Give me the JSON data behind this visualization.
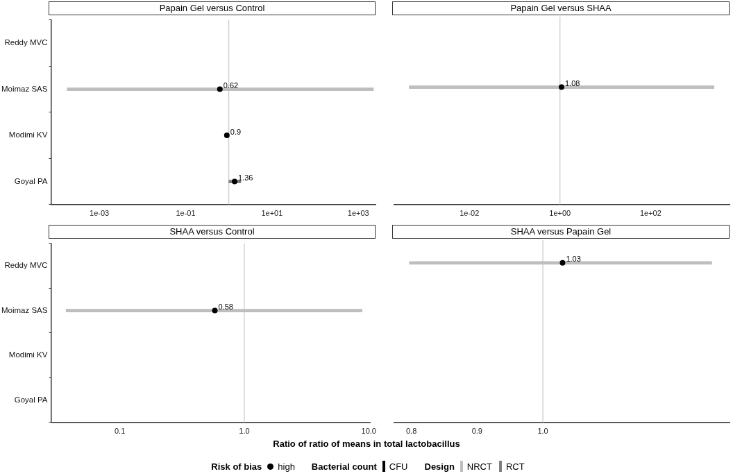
{
  "chart_data": [
    {
      "type": "scatter",
      "title": "Papain Gel versus Control",
      "orientation": "horizontal",
      "categories": [
        "Reddy MVC",
        "Moimaz SAS",
        "Modimi KV",
        "Goyal PA"
      ],
      "log": "x",
      "xlim": [
        7.6e-05,
        2500
      ],
      "xticks": [
        {
          "value": 0.001,
          "label": "1e-03"
        },
        {
          "value": 0.1,
          "label": "1e-01"
        },
        {
          "value": 10,
          "label": "1e+01"
        },
        {
          "value": 1000,
          "label": "1e+03"
        }
      ],
      "ref_lines": [
        {
          "axis": "x",
          "value": 1,
          "color": "#bebebe"
        }
      ],
      "series": [
        {
          "type": "bar",
          "color": "#bebebe",
          "base": [
            null,
            0.00018,
            null,
            null
          ],
          "values": [
            null,
            2240,
            null,
            null
          ]
        },
        {
          "type": "bar",
          "color": "#808080",
          "base": [
            null,
            null,
            null,
            1.0
          ],
          "values": [
            null,
            null,
            null,
            0.9
          ]
        },
        {
          "type": "scatter",
          "color": "#000000",
          "marker": "circle",
          "values": [
            null,
            0.62,
            0.9,
            1.36
          ],
          "value_labels": [
            null,
            "0.62",
            "0.9",
            "1.36"
          ]
        }
      ]
    },
    {
      "type": "scatter",
      "title": "Papain Gel versus SHAA",
      "orientation": "horizontal",
      "categories": [
        null,
        null,
        null,
        null
      ],
      "tick_labels": "x",
      "log": "x",
      "xlim": [
        0.00022,
        5500
      ],
      "xticks": [
        {
          "value": 0.01,
          "label": "1e-02"
        },
        {
          "value": 1,
          "label": "1e+00"
        },
        {
          "value": 100,
          "label": "1e+02"
        }
      ],
      "ref_lines": [
        {
          "axis": "x",
          "value": 1,
          "color": "#bebebe"
        }
      ],
      "series": [
        {
          "type": "bar",
          "color": "#bebebe",
          "base": [
            null,
            0.00047,
            null,
            null
          ],
          "values": [
            null,
            2500,
            null,
            null
          ]
        },
        {
          "type": "scatter",
          "color": "#000000",
          "marker": "circle",
          "values": [
            null,
            1.08,
            null,
            null
          ],
          "value_labels": [
            null,
            "1.08",
            null,
            null
          ]
        }
      ]
    },
    {
      "type": "scatter",
      "title": "SHAA versus Control",
      "orientation": "horizontal",
      "categories": [
        "Reddy MVC",
        "Moimaz SAS",
        "Modimi KV",
        "Goyal PA"
      ],
      "log": "x",
      "xlim": [
        0.028,
        10.3
      ],
      "xticks": [
        0.1,
        {
          "value": 1,
          "label": "1.0"
        },
        {
          "value": 10,
          "label": "10.0"
        }
      ],
      "ref_lines": [
        {
          "axis": "x",
          "value": 1,
          "color": "#bebebe"
        }
      ],
      "series": [
        {
          "type": "bar",
          "color": "#bebebe",
          "base": [
            null,
            0.037,
            null,
            null
          ],
          "values": [
            null,
            8.8,
            null,
            null
          ]
        },
        {
          "type": "scatter",
          "color": "#000000",
          "marker": "circle",
          "values": [
            null,
            0.58,
            null,
            null
          ],
          "value_labels": [
            null,
            "0.58",
            null,
            null
          ]
        }
      ]
    },
    {
      "type": "scatter",
      "title": "SHAA versus Papain Gel",
      "orientation": "horizontal",
      "categories": [
        null,
        null,
        null,
        null
      ],
      "tick_labels": "x",
      "xlim": [
        0.774,
        1.284
      ],
      "xticks": [
        0.8,
        0.9,
        {
          "value": 1,
          "label": "1.0"
        }
      ],
      "ref_lines": [
        {
          "axis": "x",
          "value": 1,
          "color": "#bebebe"
        }
      ],
      "series": [
        {
          "type": "bar",
          "color": "#bebebe",
          "base": [
            0.797,
            null,
            null,
            null
          ],
          "values": [
            0.46,
            null,
            null,
            null
          ]
        },
        {
          "type": "scatter",
          "color": "#000000",
          "marker": "circle",
          "values": [
            1.03,
            null,
            null,
            null
          ],
          "value_labels": [
            "1.03",
            null,
            null,
            null
          ]
        }
      ]
    },
    {
      "type": "other",
      "xlabel": "Ratio of ratio of means in total lactobacillus",
      "annotations": [
        "Risk of bias",
        "high",
        "Bacterial count",
        "CFU",
        "Design",
        "NRCT",
        "RCT"
      ]
    }
  ]
}
